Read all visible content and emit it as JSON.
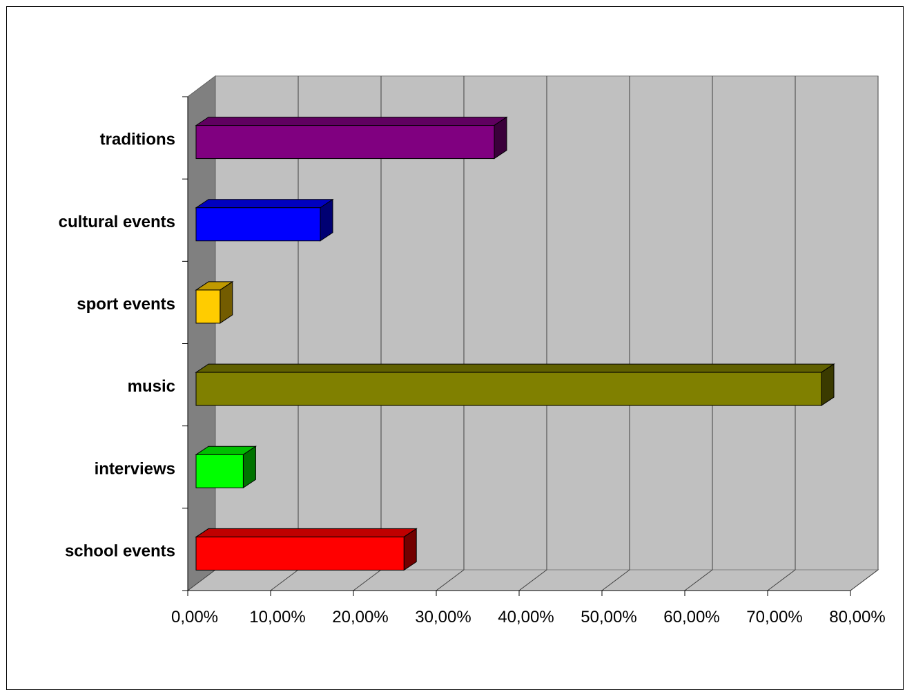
{
  "chart_data": {
    "type": "bar",
    "orientation": "horizontal",
    "style": "3d",
    "title": "",
    "xlabel": "",
    "ylabel": "",
    "categories": [
      "traditions",
      "cultural events",
      "sport events",
      "music",
      "interviews",
      "school events"
    ],
    "values": [
      36.0,
      15.0,
      2.9,
      75.5,
      5.7,
      25.1
    ],
    "colors": [
      "#800080",
      "#0000FF",
      "#FFCC00",
      "#808000",
      "#00FF00",
      "#FF0000"
    ],
    "xlim": [
      0,
      80
    ],
    "x_ticks": [
      0,
      10,
      20,
      30,
      40,
      50,
      60,
      70,
      80
    ],
    "x_tick_labels": [
      "0,00%",
      "10,00%",
      "20,00%",
      "30,00%",
      "40,00%",
      "50,00%",
      "60,00%",
      "70,00%",
      "80,00%"
    ],
    "grid": true,
    "legend": "none",
    "wall_color": "#C0C0C0",
    "side_wall_color": "#808080"
  }
}
